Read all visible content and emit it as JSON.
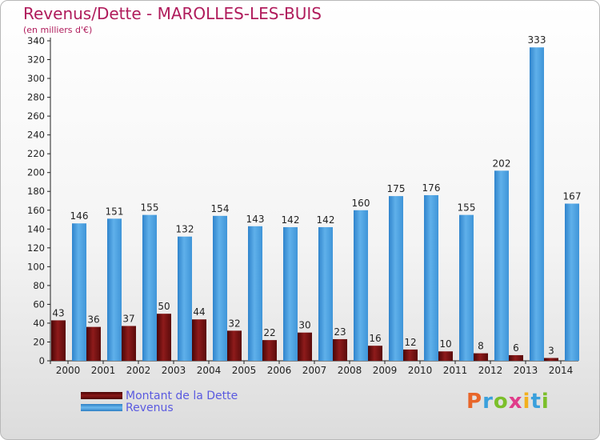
{
  "header": {
    "title": "Revenus/Dette - MAROLLES-LES-BUIS",
    "subtitle": "(en milliers d'€)"
  },
  "legend": [
    {
      "label": "Montant de la Dette",
      "color": "#7a0f0f"
    },
    {
      "label": "Revenus",
      "color": "#4aa3e6"
    }
  ],
  "logo": {
    "text": "Proxiti",
    "letter_colors": [
      "#e8662a",
      "#3aa0dc",
      "#7bbf2a",
      "#e03c8a",
      "#f2b01e",
      "#3aa0dc",
      "#7bbf2a"
    ]
  },
  "chart_data": {
    "type": "bar",
    "categories": [
      "2000",
      "2001",
      "2002",
      "2003",
      "2004",
      "2005",
      "2006",
      "2007",
      "2008",
      "2009",
      "2010",
      "2011",
      "2012",
      "2013",
      "2014"
    ],
    "series": [
      {
        "name": "Montant de la Dette",
        "color": "#7a0f0f",
        "values": [
          43,
          36,
          37,
          50,
          44,
          32,
          22,
          30,
          23,
          16,
          12,
          10,
          8,
          6,
          3
        ]
      },
      {
        "name": "Revenus",
        "color": "#4aa3e6",
        "values": [
          146,
          151,
          155,
          132,
          154,
          143,
          142,
          142,
          160,
          175,
          176,
          155,
          202,
          333,
          167
        ]
      }
    ],
    "ylim": [
      0,
      340
    ],
    "yticks": [
      0,
      20,
      40,
      60,
      80,
      100,
      120,
      140,
      160,
      180,
      200,
      220,
      240,
      260,
      280,
      300,
      320,
      340
    ],
    "grid": false,
    "data_labels": true,
    "legend_position": "bottom-left"
  }
}
